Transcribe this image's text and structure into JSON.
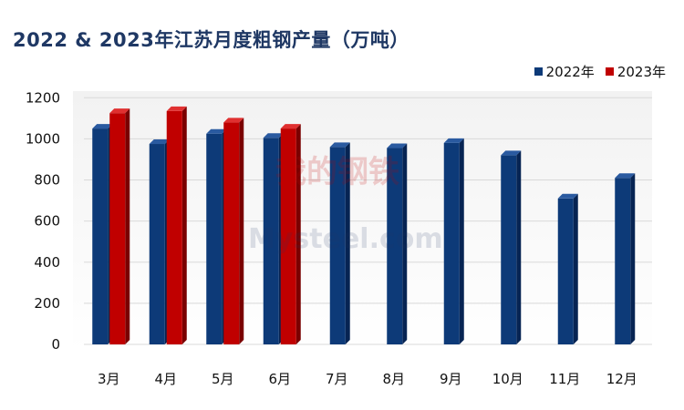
{
  "title": "2022 & 2023年江苏月度粗钢产量（万吨）",
  "watermark": {
    "text_cn": "我的钢铁",
    "text_en": "Mysteel.com"
  },
  "colors": {
    "series_2022": "#0d3a78",
    "series_2023": "#c00000",
    "grid": "#d9d9d9",
    "plot_bg": "#f2f2f2"
  },
  "chart_data": {
    "type": "bar",
    "title": "2022 & 2023年江苏月度粗钢产量（万吨）",
    "xlabel": "",
    "ylabel": "",
    "ylim": [
      0,
      1200
    ],
    "yticks": [
      0,
      200,
      400,
      600,
      800,
      1000,
      1200
    ],
    "grid": true,
    "legend": "top-right",
    "categories": [
      "3月",
      "4月",
      "5月",
      "6月",
      "7月",
      "8月",
      "9月",
      "10月",
      "11月",
      "12月"
    ],
    "series": [
      {
        "name": "2022年",
        "values": [
          1050,
          975,
          1025,
          1005,
          960,
          955,
          980,
          920,
          710,
          810
        ]
      },
      {
        "name": "2023年",
        "values": [
          1125,
          1135,
          1080,
          1050,
          null,
          null,
          null,
          null,
          null,
          null
        ]
      }
    ]
  }
}
